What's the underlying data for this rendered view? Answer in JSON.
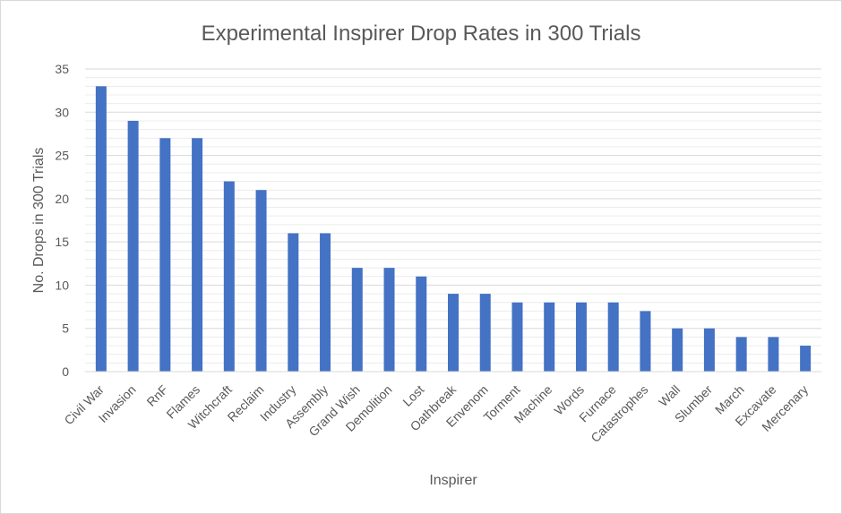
{
  "chart_data": {
    "type": "bar",
    "title": "Experimental Inspirer Drop Rates in 300 Trials",
    "xlabel": "Inspirer",
    "ylabel": "No. Drops in 300 Trials",
    "categories": [
      "Civil War",
      "Invasion",
      "RnF",
      "Flames",
      "Witchcraft",
      "Reclaim",
      "Industry",
      "Assembly",
      "Grand Wish",
      "Demolition",
      "Lost",
      "Oathbreak",
      "Envenom",
      "Torment",
      "Machine",
      "Words",
      "Furnace",
      "Catastrophes",
      "Wall",
      "Slumber",
      "March",
      "Excavate",
      "Mercenary"
    ],
    "values": [
      33,
      29,
      27,
      27,
      22,
      21,
      16,
      16,
      12,
      12,
      11,
      9,
      9,
      8,
      8,
      8,
      8,
      7,
      5,
      5,
      4,
      4,
      3
    ],
    "ylim": [
      0,
      35
    ],
    "yticks": [
      0,
      5,
      10,
      15,
      20,
      25,
      30,
      35
    ],
    "minor_grid_step": 1,
    "grid": true,
    "legend": "none",
    "colors": {
      "bar": "#4472c4",
      "major_grid": "#d9d9d9",
      "minor_grid": "#ececec",
      "text": "#595959"
    }
  }
}
